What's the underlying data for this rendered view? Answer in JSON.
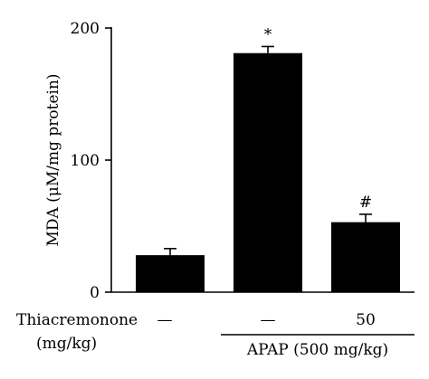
{
  "chart_data": {
    "type": "bar",
    "title": "",
    "ylabel": "MDA (μM/mg protein)",
    "xlabel": "",
    "ylim": [
      0,
      200
    ],
    "yticks": [
      0,
      100,
      200
    ],
    "categories": [
      "",
      "",
      ""
    ],
    "values": [
      28,
      181,
      53
    ],
    "errors": [
      5,
      5,
      6
    ],
    "annotations": [
      "",
      "*",
      "#"
    ],
    "bar_color": "#000000",
    "grid": false,
    "legend": "none",
    "row_labels": {
      "treatment_line1": "Thiacremonone",
      "treatment_line2": "(mg/kg)",
      "treatment_values": [
        "—",
        "—",
        "50"
      ],
      "group_label": "APAP (500 mg/kg)"
    }
  }
}
